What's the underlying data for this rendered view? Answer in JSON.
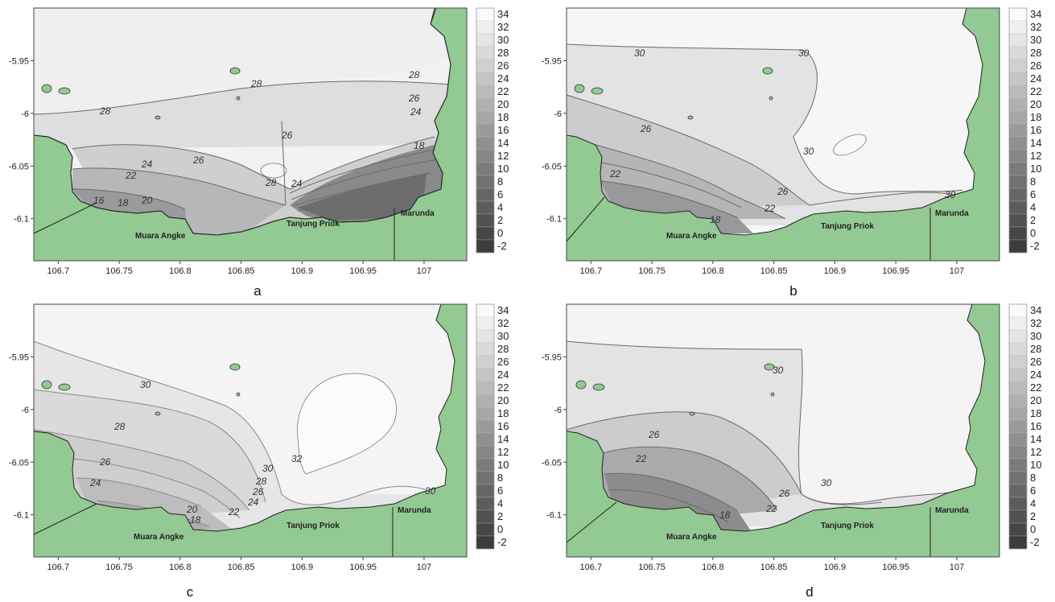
{
  "x_ticks": [
    "106.7",
    "106.75",
    "106.8",
    "106.85",
    "106.9",
    "106.95",
    "107"
  ],
  "y_ticks": [
    "-5.95",
    "-6",
    "-6.05",
    "-6.1"
  ],
  "colorbar_levels": [
    "34",
    "32",
    "30",
    "28",
    "26",
    "24",
    "22",
    "20",
    "18",
    "16",
    "14",
    "12",
    "10",
    "8",
    "6",
    "4",
    "2",
    "0",
    "-2"
  ],
  "colors": {
    "land": "#93c993",
    "sea_light": "#f3f3f3",
    "sea_dark": "#555555",
    "contour_line": "#6a6a6a"
  },
  "places": {
    "muara_angke": "Muara Angke",
    "tanjung_priok": "Tanjung Priok",
    "marunda": "Marunda"
  },
  "panels": [
    {
      "id": "a",
      "label": "a",
      "contour_labels": [
        "28",
        "28",
        "28",
        "26",
        "24",
        "26",
        "24",
        "22",
        "20",
        "18",
        "16",
        "26",
        "28",
        "24",
        "18"
      ],
      "chart_data": {
        "type": "heatmap",
        "x_range": [
          106.68,
          107.035
        ],
        "y_range": [
          -6.14,
          -5.9
        ],
        "value_range": [
          -2,
          34
        ],
        "contour_levels": [
          16,
          18,
          20,
          22,
          24,
          26,
          28
        ]
      }
    },
    {
      "id": "b",
      "label": "b",
      "contour_labels": [
        "30",
        "30",
        "26",
        "22",
        "18",
        "26",
        "22",
        "30",
        "30"
      ],
      "chart_data": {
        "type": "heatmap",
        "x_range": [
          106.68,
          107.035
        ],
        "y_range": [
          -6.14,
          -5.9
        ],
        "value_range": [
          -2,
          34
        ],
        "contour_levels": [
          18,
          22,
          26,
          30
        ]
      }
    },
    {
      "id": "c",
      "label": "c",
      "contour_labels": [
        "30",
        "28",
        "26",
        "24",
        "20",
        "18",
        "22",
        "24",
        "26",
        "28",
        "30",
        "32",
        "30"
      ],
      "chart_data": {
        "type": "heatmap",
        "x_range": [
          106.68,
          107.035
        ],
        "y_range": [
          -6.14,
          -5.9
        ],
        "value_range": [
          -2,
          34
        ],
        "contour_levels": [
          18,
          20,
          22,
          24,
          26,
          28,
          30,
          32
        ]
      }
    },
    {
      "id": "d",
      "label": "d",
      "contour_labels": [
        "30",
        "26",
        "22",
        "18",
        "22",
        "26",
        "30"
      ],
      "chart_data": {
        "type": "heatmap",
        "x_range": [
          106.68,
          107.035
        ],
        "y_range": [
          -6.14,
          -5.9
        ],
        "value_range": [
          -2,
          34
        ],
        "contour_levels": [
          18,
          22,
          26,
          30
        ]
      }
    }
  ]
}
